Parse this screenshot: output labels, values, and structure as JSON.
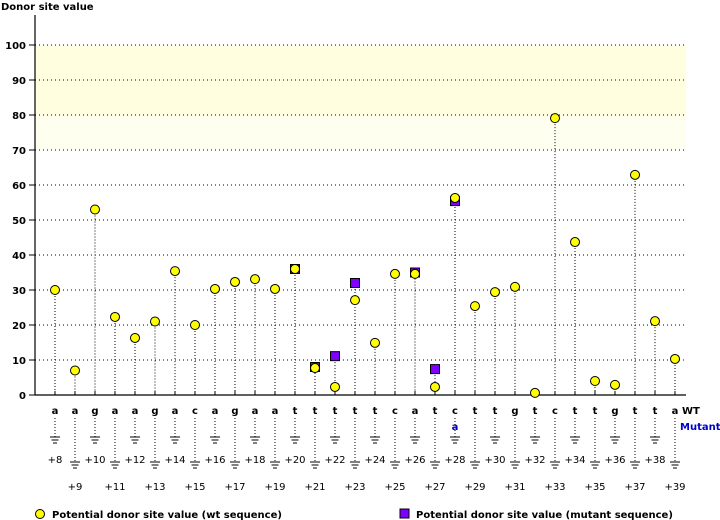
{
  "chart_data": {
    "type": "scatter",
    "title": "",
    "ylabel": "Donor site value",
    "ylim": [
      0,
      100
    ],
    "yticks": [
      0,
      10,
      20,
      30,
      40,
      50,
      60,
      70,
      80,
      90,
      100
    ],
    "highlight_bands": [
      {
        "from": 80,
        "to": 100,
        "color": "#ffffe0"
      },
      {
        "from": 70,
        "to": 80,
        "color": "#fffff0"
      }
    ],
    "positions": [
      "+8",
      "+9",
      "+10",
      "+11",
      "+12",
      "+13",
      "+14",
      "+15",
      "+16",
      "+17",
      "+18",
      "+19",
      "+20",
      "+21",
      "+22",
      "+23",
      "+24",
      "+25",
      "+26",
      "+27",
      "+28",
      "+29",
      "+30",
      "+31",
      "+32",
      "+33",
      "+34",
      "+35",
      "+36",
      "+37",
      "+38",
      "+39"
    ],
    "wt_sequence": [
      "a",
      "a",
      "g",
      "a",
      "a",
      "g",
      "a",
      "c",
      "a",
      "g",
      "a",
      "a",
      "t",
      "t",
      "t",
      "t",
      "t",
      "c",
      "a",
      "t",
      "c",
      "t",
      "t",
      "g",
      "t",
      "c",
      "t",
      "t",
      "g",
      "t",
      "t",
      "a"
    ],
    "mutant_sequence": [
      "",
      "",
      "",
      "",
      "",
      "",
      "",
      "",
      "",
      "",
      "",
      "",
      "",
      "",
      "",
      "",
      "",
      "",
      "",
      "",
      "a",
      "",
      "",
      "",
      "",
      "",
      "",
      "",
      "",
      "",
      "",
      ""
    ],
    "wt_row_label": "WT",
    "mutant_row_label": "Mutant",
    "series": [
      {
        "name": "Potential donor site value (wt sequence)",
        "color": "#ffff00",
        "marker": "circle",
        "values": [
          30,
          7,
          53,
          22.3,
          16.3,
          21,
          35.4,
          20,
          30.3,
          32.3,
          33.1,
          30.3,
          36,
          7.7,
          2.3,
          27.1,
          14.9,
          34.6,
          34.6,
          2.3,
          56.3,
          25.4,
          29.4,
          30.9,
          0.6,
          79.1,
          43.7,
          4,
          2.9,
          62.9,
          21.1,
          10.3
        ]
      },
      {
        "name": "Potential donor site value (mutant sequence)",
        "color": "#8000ff",
        "marker": "square",
        "values": [
          null,
          null,
          null,
          null,
          null,
          null,
          null,
          null,
          null,
          null,
          null,
          null,
          36,
          8,
          11.1,
          32,
          null,
          null,
          35,
          7.4,
          55.4,
          null,
          null,
          null,
          null,
          null,
          null,
          null,
          null,
          null,
          null,
          null
        ]
      }
    ],
    "legend_position": "bottom"
  }
}
